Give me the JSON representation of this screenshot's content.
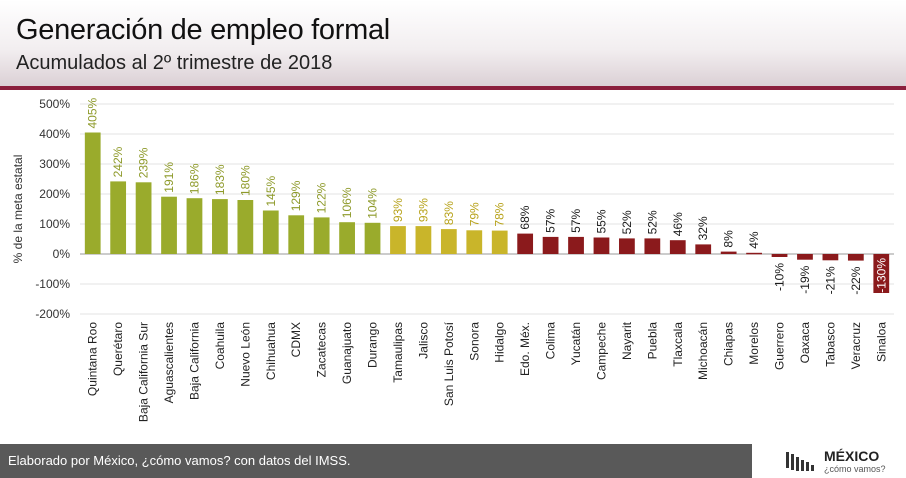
{
  "header": {
    "title": "Generación de empleo formal",
    "subtitle": "Acumulados al 2º trimestre de 2018"
  },
  "footer": {
    "credit": "Elaborado por México, ¿cómo vamos? con datos del IMSS.",
    "logo_name": "MÉXICO",
    "logo_tagline": "¿cómo vamos?"
  },
  "colors": {
    "green": "#9aab2c",
    "yellow": "#c9b52a",
    "red": "#8b1a1c",
    "header_accent": "#8b1f3c"
  },
  "chart_data": {
    "type": "bar",
    "title": "Generación de empleo formal",
    "subtitle": "Acumulados al 2º trimestre de 2018",
    "xlabel": "",
    "ylabel": "% de la meta estatal",
    "ylim": [
      -200,
      500
    ],
    "yticks": [
      -200,
      -100,
      0,
      100,
      200,
      300,
      400,
      500
    ],
    "ytick_labels": [
      "-200%",
      "-100%",
      "0%",
      "100%",
      "200%",
      "300%",
      "400%",
      "500%"
    ],
    "grid": true,
    "categories": [
      "Quintana Roo",
      "Querétaro",
      "Baja California Sur",
      "Aguascalientes",
      "Baja California",
      "Coahuila",
      "Nuevo León",
      "Chihuahua",
      "CDMX",
      "Zacatecas",
      "Guanajuato",
      "Durango",
      "Tamaulipas",
      "Jalisco",
      "San Luis Potosí",
      "Sonora",
      "Hidalgo",
      "Edo. Méx.",
      "Colima",
      "Yucatán",
      "Campeche",
      "Nayarit",
      "Puebla",
      "Tlaxcala",
      "Michoacán",
      "Chiapas",
      "Morelos",
      "Guerrero",
      "Oaxaca",
      "Tabasco",
      "Veracruz",
      "Sinaloa"
    ],
    "values": [
      405,
      242,
      239,
      191,
      186,
      183,
      180,
      145,
      129,
      122,
      106,
      104,
      93,
      93,
      83,
      79,
      78,
      68,
      57,
      57,
      55,
      52,
      52,
      46,
      32,
      8,
      4,
      -10,
      -19,
      -21,
      -22,
      -130
    ],
    "labels": [
      "405%",
      "242%",
      "239%",
      "191%",
      "186%",
      "183%",
      "180%",
      "145%",
      "129%",
      "122%",
      "106%",
      "104%",
      "93%",
      "93%",
      "83%",
      "79%",
      "78%",
      "68%",
      "57%",
      "57%",
      "55%",
      "52%",
      "52%",
      "46%",
      "32%",
      "8%",
      "4%",
      "-10%",
      "-19%",
      "-21%",
      "-22%",
      "-130%"
    ],
    "color_groups": [
      "green",
      "green",
      "green",
      "green",
      "green",
      "green",
      "green",
      "green",
      "green",
      "green",
      "green",
      "green",
      "yellow",
      "yellow",
      "yellow",
      "yellow",
      "yellow",
      "red",
      "red",
      "red",
      "red",
      "red",
      "red",
      "red",
      "red",
      "red",
      "red",
      "red",
      "red",
      "red",
      "red",
      "red"
    ]
  }
}
